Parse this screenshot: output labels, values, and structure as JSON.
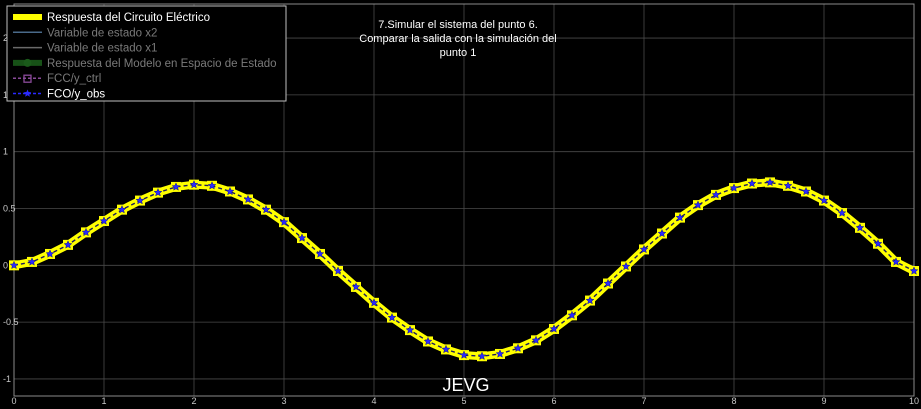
{
  "chart_data": {
    "type": "line",
    "title_lines": [
      "7.Simular el sistema del punto 6.",
      "Comparar la salida con la simulación del",
      "punto 1"
    ],
    "watermark": "JEVG",
    "xlim": [
      0,
      10
    ],
    "ylim": [
      -1.15,
      2.3
    ],
    "x_ticks": [
      0,
      1,
      2,
      3,
      4,
      5,
      6,
      7,
      8,
      9,
      10
    ],
    "x_tick_labels": [
      "0",
      "1",
      "2",
      "3",
      "4",
      "5",
      "6",
      "7",
      "8",
      "9",
      "10"
    ],
    "y_ticks": [
      -1,
      -0.5,
      0,
      0.5,
      1,
      1.5,
      2
    ],
    "y_tick_labels": [
      "-1",
      "-0.5",
      "0",
      "0.5",
      "1",
      "1.5",
      "2"
    ],
    "grid": true,
    "legend_position": "top-left",
    "legend": [
      {
        "label": "Respuesta del Circuito Eléctrico",
        "color": "#ffff00",
        "style": "thick-solid",
        "dimmed": false
      },
      {
        "label": "Variable de estado x2",
        "color": "#4a6a8a",
        "style": "solid",
        "dimmed": true
      },
      {
        "label": "Variable de estado x1",
        "color": "#6a6a6a",
        "style": "solid",
        "dimmed": true
      },
      {
        "label": "Respuesta del Modelo en Espacio de Estado",
        "color": "#1a5a1a",
        "style": "thick-solid",
        "dimmed": true
      },
      {
        "label": "FCC/y_ctrl",
        "color": "#8a4a9a",
        "style": "dashed-square",
        "dimmed": true
      },
      {
        "label": "FCO/y_obs",
        "color": "#2a2aff",
        "style": "dashed-star",
        "dimmed": false
      }
    ],
    "series": [
      {
        "name": "Respuesta del Circuito Eléctrico",
        "color": "#ffff00",
        "x": [
          0,
          0.2,
          0.4,
          0.6,
          0.8,
          1.0,
          1.2,
          1.4,
          1.6,
          1.8,
          2.0,
          2.2,
          2.4,
          2.6,
          2.8,
          3.0,
          3.2,
          3.4,
          3.6,
          3.8,
          4.0,
          4.2,
          4.4,
          4.6,
          4.8,
          5.0,
          5.2,
          5.4,
          5.6,
          5.8,
          6.0,
          6.2,
          6.4,
          6.6,
          6.8,
          7.0,
          7.2,
          7.4,
          7.6,
          7.8,
          8.0,
          8.2,
          8.4,
          8.6,
          8.8,
          9.0,
          9.2,
          9.4,
          9.6,
          9.8,
          10.0
        ],
        "y": [
          0.0,
          0.03,
          0.1,
          0.18,
          0.29,
          0.39,
          0.49,
          0.57,
          0.64,
          0.69,
          0.71,
          0.7,
          0.65,
          0.58,
          0.49,
          0.38,
          0.24,
          0.1,
          -0.05,
          -0.19,
          -0.33,
          -0.46,
          -0.57,
          -0.67,
          -0.74,
          -0.79,
          -0.8,
          -0.78,
          -0.73,
          -0.66,
          -0.56,
          -0.44,
          -0.31,
          -0.16,
          -0.01,
          0.14,
          0.28,
          0.42,
          0.53,
          0.62,
          0.68,
          0.72,
          0.73,
          0.7,
          0.65,
          0.57,
          0.46,
          0.33,
          0.19,
          0.03,
          -0.05
        ]
      },
      {
        "name": "FCO/y_obs",
        "color": "#2a2aff",
        "x": [
          0,
          0.2,
          0.4,
          0.6,
          0.8,
          1.0,
          1.2,
          1.4,
          1.6,
          1.8,
          2.0,
          2.2,
          2.4,
          2.6,
          2.8,
          3.0,
          3.2,
          3.4,
          3.6,
          3.8,
          4.0,
          4.2,
          4.4,
          4.6,
          4.8,
          5.0,
          5.2,
          5.4,
          5.6,
          5.8,
          6.0,
          6.2,
          6.4,
          6.6,
          6.8,
          7.0,
          7.2,
          7.4,
          7.6,
          7.8,
          8.0,
          8.2,
          8.4,
          8.6,
          8.8,
          9.0,
          9.2,
          9.4,
          9.6,
          9.8,
          10.0
        ],
        "y": [
          0.0,
          0.03,
          0.1,
          0.18,
          0.29,
          0.39,
          0.49,
          0.57,
          0.64,
          0.69,
          0.71,
          0.7,
          0.65,
          0.58,
          0.49,
          0.38,
          0.24,
          0.1,
          -0.05,
          -0.19,
          -0.33,
          -0.46,
          -0.57,
          -0.67,
          -0.74,
          -0.79,
          -0.8,
          -0.78,
          -0.73,
          -0.66,
          -0.56,
          -0.44,
          -0.31,
          -0.16,
          -0.01,
          0.14,
          0.28,
          0.42,
          0.53,
          0.62,
          0.68,
          0.72,
          0.73,
          0.7,
          0.65,
          0.57,
          0.46,
          0.33,
          0.19,
          0.03,
          -0.05
        ]
      }
    ]
  }
}
